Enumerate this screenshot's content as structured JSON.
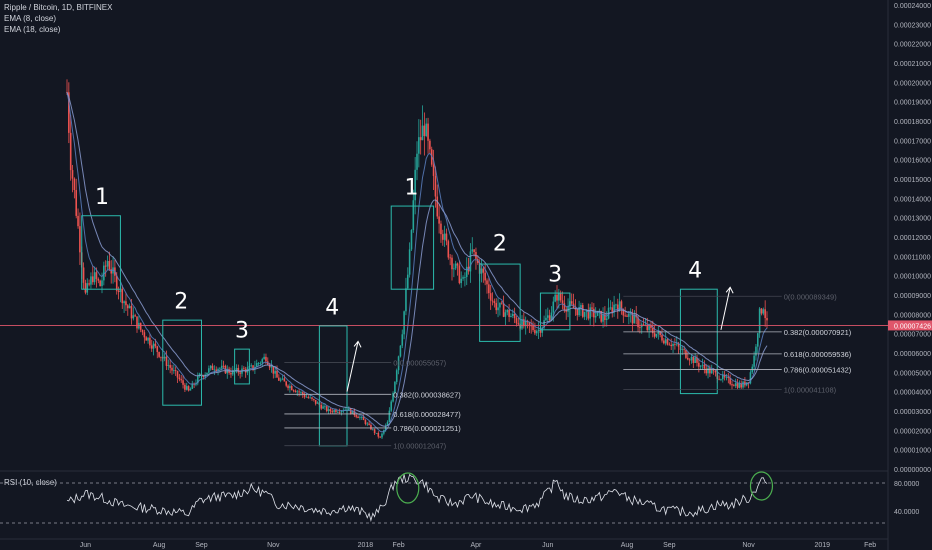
{
  "header": {
    "symbol": "Ripple / Bitcoin, 1D, BITFINEX",
    "ema1": "EMA (8, close)",
    "ema2": "EMA (18, close)",
    "rsi": "RSI (10, close)"
  },
  "colors": {
    "background": "#131722",
    "up": "#26a69a",
    "down": "#ef5350",
    "box": "#2bbbad",
    "ema": "#4a6fa5",
    "price_line": "#e0566b",
    "rsi_circle": "#4caf50"
  },
  "chart_data": {
    "type": "candlestick",
    "title": "Ripple / Bitcoin, 1D, BITFINEX",
    "indicators": [
      "EMA (8, close)",
      "EMA (18, close)",
      "RSI (10, close)"
    ],
    "y_ticks": [
      "0.00000000",
      "0.00001000",
      "0.00002000",
      "0.00003000",
      "0.00004000",
      "0.00005000",
      "0.00006000",
      "0.00007000",
      "0.00008000",
      "0.00009000",
      "0.00010000",
      "0.00011000",
      "0.00012000",
      "0.00013000",
      "0.00014000",
      "0.00015000",
      "0.00016000",
      "0.00017000",
      "0.00018000",
      "0.00019000",
      "0.00020000",
      "0.00021000",
      "0.00022000",
      "0.00023000",
      "0.00024000"
    ],
    "x_ticks": [
      "Jun",
      "Aug",
      "Sep",
      "Nov",
      "2018",
      "Feb",
      "Apr",
      "Jun",
      "Aug",
      "Sep",
      "Nov",
      "2019",
      "Feb"
    ],
    "last_price": "0.00007426",
    "price_path": [
      [
        0,
        0.000195
      ],
      [
        2,
        0.00016
      ],
      [
        6,
        0.000125
      ],
      [
        10,
        9e-05
      ],
      [
        14,
        0.0001
      ],
      [
        18,
        9.5e-05
      ],
      [
        22,
        0.000108
      ],
      [
        26,
        9.8e-05
      ],
      [
        32,
        8.5e-05
      ],
      [
        40,
        7.2e-05
      ],
      [
        50,
        6e-05
      ],
      [
        58,
        5e-05
      ],
      [
        66,
        4e-05
      ],
      [
        72,
        4.8e-05
      ],
      [
        80,
        5.3e-05
      ],
      [
        90,
        5e-05
      ],
      [
        100,
        5.2e-05
      ],
      [
        108,
        5.8e-05
      ],
      [
        114,
        4.7e-05
      ],
      [
        124,
        4.1e-05
      ],
      [
        134,
        3.5e-05
      ],
      [
        142,
        3e-05
      ],
      [
        152,
        3.1e-05
      ],
      [
        160,
        2.6e-05
      ],
      [
        166,
        2e-05
      ],
      [
        170,
        1.6e-05
      ],
      [
        174,
        2.4e-05
      ],
      [
        178,
        4.6e-05
      ],
      [
        182,
        7.2e-05
      ],
      [
        186,
        0.00011
      ],
      [
        190,
        0.000165
      ],
      [
        194,
        0.000178
      ],
      [
        197,
        0.00016
      ],
      [
        201,
        0.000135
      ],
      [
        205,
        0.000118
      ],
      [
        210,
        0.000105
      ],
      [
        215,
        9.6e-05
      ],
      [
        220,
        0.000112
      ],
      [
        226,
        0.0001
      ],
      [
        232,
        8.5e-05
      ],
      [
        240,
        8e-05
      ],
      [
        248,
        7.4e-05
      ],
      [
        256,
        7.2e-05
      ],
      [
        262,
        8e-05
      ],
      [
        266,
        9e-05
      ],
      [
        270,
        8.5e-05
      ],
      [
        278,
        8.2e-05
      ],
      [
        286,
        8e-05
      ],
      [
        292,
        7.8e-05
      ],
      [
        298,
        8.6e-05
      ],
      [
        304,
        8e-05
      ],
      [
        312,
        7.4e-05
      ],
      [
        320,
        7e-05
      ],
      [
        330,
        6.4e-05
      ],
      [
        338,
        5.8e-05
      ],
      [
        346,
        5.2e-05
      ],
      [
        354,
        4.8e-05
      ],
      [
        360,
        4.5e-05
      ],
      [
        366,
        4.3e-05
      ],
      [
        370,
        4.6e-05
      ],
      [
        373,
        5.8e-05
      ],
      [
        376,
        8e-05
      ],
      [
        378,
        8.5e-05
      ],
      [
        380,
        7.4e-05
      ]
    ],
    "fib_1": [
      {
        "label": "0(0.000055057)",
        "value": 5.5057e-05
      },
      {
        "label": "0.382(0.000038627)",
        "value": 3.8627e-05
      },
      {
        "label": "0.618(0.000028477)",
        "value": 2.8477e-05
      },
      {
        "label": "0.786(0.000021251)",
        "value": 2.1251e-05
      },
      {
        "label": "1(0.000012047)",
        "value": 1.2047e-05
      }
    ],
    "fib_2": [
      {
        "label": "0(0.000089349)",
        "value": 8.9349e-05
      },
      {
        "label": "0.382(0.000070921)",
        "value": 7.0921e-05
      },
      {
        "label": "0.618(0.000059536)",
        "value": 5.9536e-05
      },
      {
        "label": "0.786(0.000051432)",
        "value": 5.1432e-05
      },
      {
        "label": "1(0.000041108)",
        "value": 4.1108e-05
      }
    ],
    "wave_labels": [
      "1",
      "2",
      "3",
      "4",
      "1",
      "2",
      "3",
      "4"
    ],
    "rsi_ticks": [
      "80.0000",
      "40.0000"
    ],
    "rsi_path": [
      [
        0,
        52
      ],
      [
        10,
        65
      ],
      [
        20,
        58
      ],
      [
        30,
        48
      ],
      [
        40,
        45
      ],
      [
        50,
        42
      ],
      [
        60,
        38
      ],
      [
        66,
        36
      ],
      [
        72,
        55
      ],
      [
        80,
        60
      ],
      [
        90,
        62
      ],
      [
        100,
        72
      ],
      [
        108,
        65
      ],
      [
        114,
        50
      ],
      [
        124,
        48
      ],
      [
        134,
        42
      ],
      [
        142,
        40
      ],
      [
        152,
        46
      ],
      [
        160,
        38
      ],
      [
        166,
        32
      ],
      [
        170,
        42
      ],
      [
        174,
        60
      ],
      [
        178,
        82
      ],
      [
        182,
        86
      ],
      [
        186,
        88
      ],
      [
        190,
        84
      ],
      [
        194,
        80
      ],
      [
        197,
        70
      ],
      [
        201,
        58
      ],
      [
        210,
        50
      ],
      [
        220,
        62
      ],
      [
        232,
        48
      ],
      [
        240,
        46
      ],
      [
        248,
        44
      ],
      [
        256,
        52
      ],
      [
        262,
        70
      ],
      [
        266,
        84
      ],
      [
        270,
        62
      ],
      [
        278,
        55
      ],
      [
        286,
        58
      ],
      [
        292,
        62
      ],
      [
        298,
        70
      ],
      [
        304,
        58
      ],
      [
        312,
        52
      ],
      [
        320,
        45
      ],
      [
        330,
        40
      ],
      [
        338,
        38
      ],
      [
        346,
        42
      ],
      [
        354,
        50
      ],
      [
        360,
        48
      ],
      [
        366,
        55
      ],
      [
        370,
        58
      ],
      [
        373,
        68
      ],
      [
        376,
        82
      ],
      [
        378,
        86
      ],
      [
        380,
        78
      ]
    ]
  }
}
